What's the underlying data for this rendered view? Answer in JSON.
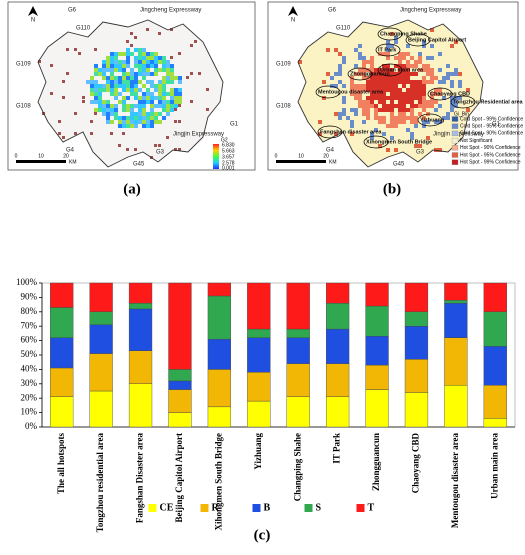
{
  "maps": {
    "a": {
      "panel_label": "(a)",
      "north": "N",
      "roads": [
        "G6",
        "G110",
        "Jingcheng Expressway",
        "G109",
        "G108",
        "G1",
        "G4",
        "G3",
        "G45",
        "Jingjin Expressway"
      ],
      "legend_title": "G2",
      "legend_values": [
        "6.830",
        "5.663",
        "3.657",
        "2.578",
        "0.001"
      ],
      "scale": [
        "0",
        "10",
        "20",
        "KM"
      ]
    },
    "b": {
      "panel_label": "(b)",
      "north": "N",
      "roads": [
        "G6",
        "G110",
        "Jingcheng Expressway",
        "G109",
        "G108",
        "G1",
        "G4",
        "G3",
        "G45",
        "Jingjin Expressway"
      ],
      "areas": [
        "Changping Shahe",
        "Beijing Capitol Airport",
        "IT Park",
        "Zhongguancun",
        "Urban main area",
        "Chaoyang CBD",
        "Mentougou disaster area",
        "Tongzhou Residential area",
        "Yizhuang",
        "Fangshan disaster area",
        "Xihongmen South Bridge"
      ],
      "legend_title": "Gi_Bin",
      "legend_items": [
        "Cold Spot - 99% Confidence",
        "Cold Spot - 95% Confidence",
        "Cold Spot - 90% Confidence",
        "Not Significant",
        "Hot Spot - 90% Confidence",
        "Hot Spot - 95% Confidence",
        "Hot Spot - 99% Confidence"
      ],
      "scale": [
        "0",
        "10",
        "20",
        "KM"
      ]
    }
  },
  "chart_data": {
    "type": "stacked_bar",
    "panel_label": "(c)",
    "categories": [
      "The all hotspots",
      "Tongzhou residential area",
      "Fangshan Disaster area",
      "Beijing Capitol Airport",
      "Xihongmen South Bridge",
      "Yizhuang",
      "Changping Shahe",
      "IT Park",
      "Zhongguancun",
      "Chaoyang CBD",
      "Mentougou disaster area",
      "Urban main area"
    ],
    "series": [
      {
        "name": "CE",
        "color": "#ffff00",
        "values": [
          21,
          25,
          30,
          10,
          14,
          18,
          21,
          21,
          26,
          24,
          29,
          6
        ]
      },
      {
        "name": "R",
        "color": "#f2b705",
        "values": [
          20,
          26,
          23,
          16,
          26,
          20,
          23,
          23,
          17,
          23,
          33,
          23
        ]
      },
      {
        "name": "B",
        "color": "#1f4fe0",
        "values": [
          21,
          20,
          29,
          6,
          21,
          24,
          18,
          24,
          20,
          23,
          24,
          27
        ]
      },
      {
        "name": "S",
        "color": "#2fa84f",
        "values": [
          21,
          9,
          4,
          8,
          30,
          6,
          6,
          18,
          21,
          10,
          2,
          24
        ]
      },
      {
        "name": "T",
        "color": "#ff1a1a",
        "values": [
          17,
          20,
          14,
          60,
          9,
          32,
          32,
          14,
          16,
          20,
          12,
          20
        ]
      }
    ],
    "ylim": [
      0,
      100
    ],
    "yticks": [
      {
        "value": 0,
        "label": "0%"
      },
      {
        "value": 10,
        "label": "10%"
      },
      {
        "value": 20,
        "label": "20%"
      },
      {
        "value": 30,
        "label": "30%"
      },
      {
        "value": 40,
        "label": "40%"
      },
      {
        "value": 50,
        "label": "50%"
      },
      {
        "value": 60,
        "label": "60%"
      },
      {
        "value": 70,
        "label": "70%"
      },
      {
        "value": 80,
        "label": "80%"
      },
      {
        "value": 90,
        "label": "90%"
      },
      {
        "value": 100,
        "label": "100%"
      }
    ],
    "grid": false,
    "legend": "bottom"
  }
}
